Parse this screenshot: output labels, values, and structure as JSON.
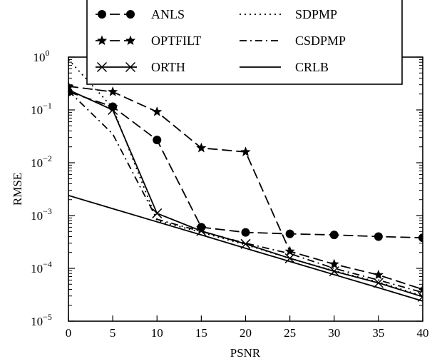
{
  "chart_data": {
    "type": "line",
    "title": "",
    "xlabel": "PSNR",
    "ylabel": "RMSE",
    "xlim": [
      0,
      40
    ],
    "ylim_log10": [
      -5,
      0
    ],
    "y_scale": "log",
    "grid": false,
    "legend_position": "top-center",
    "x_ticks": [
      "0",
      "5",
      "10",
      "15",
      "20",
      "25",
      "30",
      "35",
      "40"
    ],
    "y_ticks": [
      {
        "base": "10",
        "exp": "−5",
        "value": 1e-05
      },
      {
        "base": "10",
        "exp": "−4",
        "value": 0.0001
      },
      {
        "base": "10",
        "exp": "−3",
        "value": 0.001
      },
      {
        "base": "10",
        "exp": "−2",
        "value": 0.01
      },
      {
        "base": "10",
        "exp": "−1",
        "value": 0.1
      },
      {
        "base": "10",
        "exp": "0",
        "value": 1
      }
    ],
    "x": [
      0,
      5,
      10,
      15,
      20,
      25,
      30,
      35,
      40
    ],
    "series": [
      {
        "name": "ANLS",
        "style": "dashed",
        "marker": "circle",
        "values": [
          0.22,
          0.115,
          0.027,
          0.0006,
          0.00048,
          0.00045,
          0.00043,
          0.0004,
          0.00038
        ]
      },
      {
        "name": "OPTFILT",
        "style": "dashed",
        "marker": "star",
        "values": [
          0.28,
          0.22,
          0.092,
          0.019,
          0.016,
          0.00021,
          0.00012,
          7.5e-05,
          4e-05
        ]
      },
      {
        "name": "ORTH",
        "style": "solid",
        "marker": "x",
        "values": [
          0.24,
          0.1,
          0.0011,
          0.00051,
          0.00029,
          0.000155,
          8.8e-05,
          5.3e-05,
          2.9e-05
        ]
      },
      {
        "name": "SDPMP",
        "style": "dotted",
        "marker": "none",
        "values": [
          0.9,
          0.11,
          0.0008,
          0.00048,
          0.00028,
          0.000155,
          9e-05,
          5.5e-05,
          3e-05
        ]
      },
      {
        "name": "CSDPMP",
        "style": "dashdot",
        "marker": "none",
        "values": [
          0.23,
          0.035,
          0.00085,
          0.0005,
          0.0003,
          0.00019,
          0.0001,
          6e-05,
          3.5e-05
        ]
      },
      {
        "name": "CRLB",
        "style": "solid",
        "marker": "none",
        "values": [
          0.0024,
          0.00135,
          0.00076,
          0.00043,
          0.00024,
          0.000135,
          7.6e-05,
          4.3e-05,
          2.4e-05
        ]
      }
    ]
  }
}
